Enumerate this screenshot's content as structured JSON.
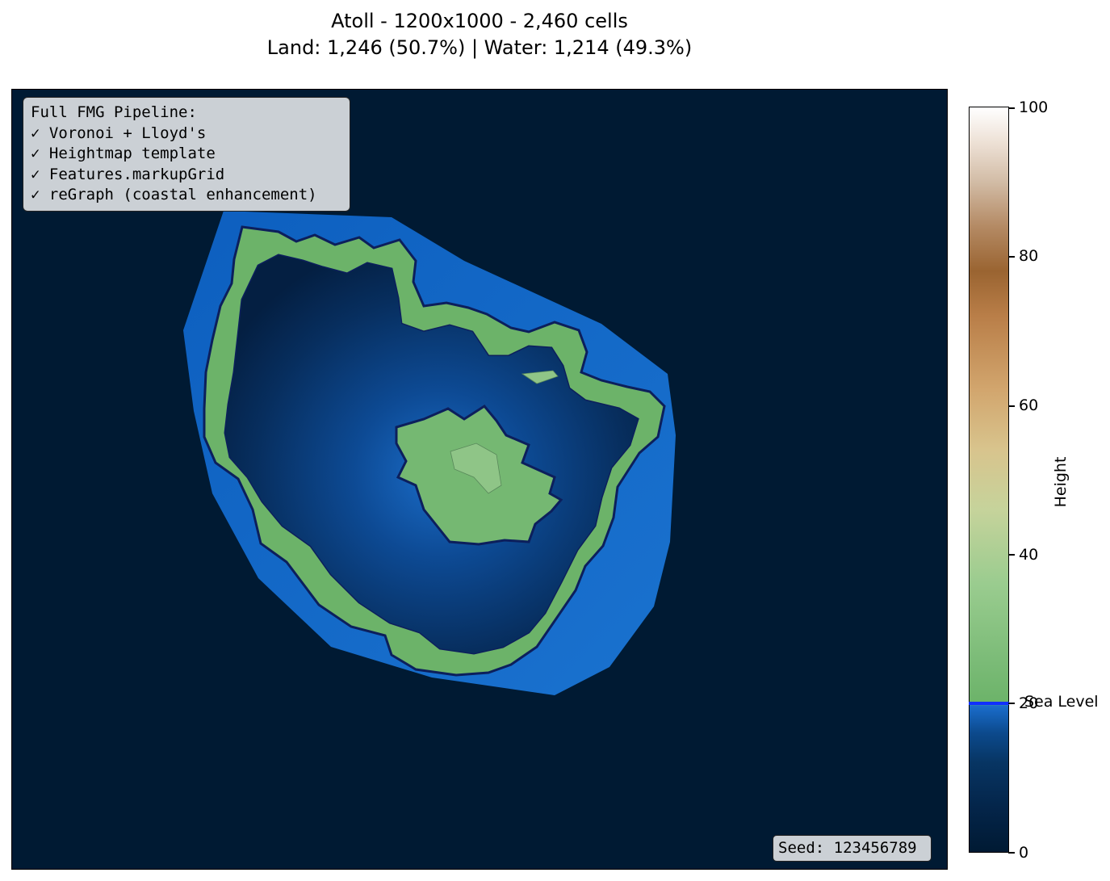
{
  "title_line1": "Atoll - 1200x1000 - 2,460 cells",
  "title_line2": "Land: 1,246 (50.7%) | Water: 1,214 (49.3%)",
  "pipeline_box": {
    "lines": [
      "Full FMG Pipeline:",
      "✓ Voronoi + Lloyd's",
      "✓ Heightmap template",
      "✓ Features.markupGrid",
      "✓ reGraph (coastal enhancement)"
    ]
  },
  "seed_label": "Seed: 123456789",
  "colorbar": {
    "label": "Height",
    "ticks": [
      "0",
      "20",
      "40",
      "60",
      "80",
      "100"
    ],
    "range": [
      0,
      100
    ],
    "sea_level": 20,
    "sea_level_label": "Sea Level",
    "sea_level_color": "#1030ff"
  },
  "colors": {
    "deep_ocean": "#001a33",
    "shallow_ocean": "#1668c4",
    "land_low": "#6fb56a",
    "land_mid": "#9acc8f",
    "coastline": "#0c1f5c"
  }
}
